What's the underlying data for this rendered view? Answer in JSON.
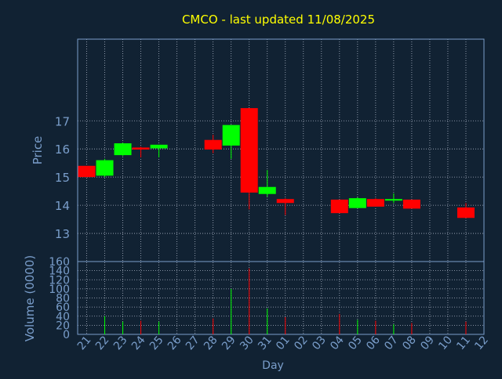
{
  "chart_data": [
    {
      "type": "candlestick",
      "title": "CMCO - last updated 11/08/2025",
      "ylabel": "Price",
      "ylim": [
        12.0,
        19.9
      ],
      "yticks": [
        "13",
        "14",
        "15",
        "16",
        "17"
      ],
      "grid": true,
      "categories": [
        "21",
        "22",
        "23",
        "24",
        "25",
        "26",
        "27",
        "28",
        "29",
        "30",
        "31",
        "01",
        "02",
        "03",
        "04",
        "05",
        "06",
        "07",
        "08",
        "09",
        "10",
        "11",
        "12"
      ],
      "candles": [
        {
          "day": "21",
          "open": 15.4,
          "close": 15.0,
          "high": 15.4,
          "low": 15.0
        },
        {
          "day": "22",
          "open": 15.05,
          "close": 15.6,
          "high": 15.65,
          "low": 15.0
        },
        {
          "day": "23",
          "open": 15.78,
          "close": 16.2,
          "high": 16.22,
          "low": 15.75
        },
        {
          "day": "24",
          "open": 16.05,
          "close": 15.98,
          "high": 16.08,
          "low": 15.7
        },
        {
          "day": "25",
          "open": 16.02,
          "close": 16.15,
          "high": 16.15,
          "low": 15.7
        },
        {
          "day": "28",
          "open": 16.32,
          "close": 15.98,
          "high": 16.5,
          "low": 15.85
        },
        {
          "day": "29",
          "open": 16.12,
          "close": 16.85,
          "high": 16.85,
          "low": 15.65
        },
        {
          "day": "30",
          "open": 17.45,
          "close": 14.45,
          "high": 17.45,
          "low": 13.85
        },
        {
          "day": "31",
          "open": 14.4,
          "close": 14.65,
          "high": 15.25,
          "low": 14.3
        },
        {
          "day": "01",
          "open": 14.22,
          "close": 14.08,
          "high": 14.25,
          "low": 13.65
        },
        {
          "day": "04",
          "open": 14.2,
          "close": 13.72,
          "high": 14.2,
          "low": 13.72
        },
        {
          "day": "05",
          "open": 13.9,
          "close": 14.25,
          "high": 14.28,
          "low": 13.9
        },
        {
          "day": "06",
          "open": 14.22,
          "close": 13.95,
          "high": 14.25,
          "low": 13.95
        },
        {
          "day": "07",
          "open": 14.18,
          "close": 14.22,
          "high": 14.42,
          "low": 14.08
        },
        {
          "day": "08",
          "open": 14.2,
          "close": 13.88,
          "high": 14.2,
          "low": 13.88
        },
        {
          "day": "11",
          "open": 13.92,
          "close": 13.55,
          "high": 14.08,
          "low": 13.55
        }
      ]
    },
    {
      "type": "bar",
      "xlabel": "Day",
      "ylabel": "Volume (0000)",
      "ylim": [
        0,
        160
      ],
      "yticks": [
        "0",
        "20",
        "40",
        "60",
        "80",
        "100",
        "120",
        "140",
        "160"
      ],
      "grid": true,
      "categories": [
        "21",
        "22",
        "23",
        "24",
        "25",
        "26",
        "27",
        "28",
        "29",
        "30",
        "31",
        "01",
        "02",
        "03",
        "04",
        "05",
        "06",
        "07",
        "08",
        "09",
        "10",
        "11",
        "12"
      ],
      "series": [
        {
          "x": [
            "22",
            "23",
            "24",
            "25",
            "28",
            "29",
            "30",
            "31",
            "01",
            "04",
            "05",
            "06",
            "07",
            "08",
            "11"
          ],
          "values": [
            40,
            28,
            30,
            28,
            35,
            100,
            145,
            57,
            38,
            45,
            32,
            30,
            22,
            25,
            28
          ],
          "colors": [
            "#00ff00",
            "#00ff00",
            "#ff0000",
            "#00ff00",
            "#ff0000",
            "#00ff00",
            "#ff0000",
            "#00ff00",
            "#ff0000",
            "#ff0000",
            "#00ff00",
            "#ff0000",
            "#00ff00",
            "#ff0000",
            "#ff0000"
          ]
        }
      ]
    }
  ],
  "colors": {
    "background": "#112233",
    "up": "#00ff00",
    "down": "#ff0000",
    "title": "#ffff00",
    "axis_text": "#7a9ecb",
    "frame": "#7a9ecb",
    "grid": "#aab3c4"
  }
}
